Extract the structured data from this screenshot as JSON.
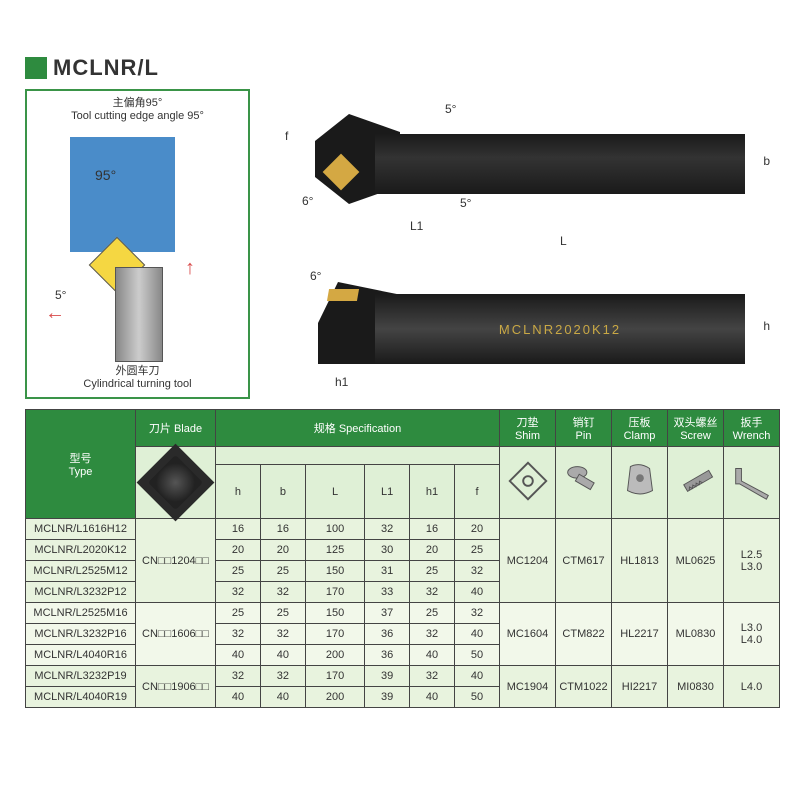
{
  "title": "MCLNR/L",
  "diagram": {
    "top_label_cn": "主偏角95°",
    "top_label_en": "Tool cutting edge angle 95°",
    "angle_main": "95°",
    "angle_minor": "5°",
    "bottom_label_cn": "外圆车刀",
    "bottom_label_en": "Cylindrical turning tool"
  },
  "dims": {
    "a5_top": "5°",
    "a6_left": "6°",
    "a5_right": "5°",
    "f": "f",
    "b": "b",
    "L": "L",
    "L1": "L1",
    "a6_side": "6°",
    "h1": "h1",
    "h": "h",
    "marking": "MCLNR2020K12"
  },
  "headers": {
    "type_cn": "型号",
    "type_en": "Type",
    "blade_cn": "刀片",
    "blade_en": "Blade",
    "spec_cn": "规格",
    "spec_en": "Specification",
    "shim_cn": "刀垫",
    "shim_en": "Shim",
    "pin_cn": "销钉",
    "pin_en": "Pin",
    "clamp_cn": "压板",
    "clamp_en": "Clamp",
    "screw_cn": "双头螺丝",
    "screw_en": "Screw",
    "wrench_cn": "扳手",
    "wrench_en": "Wrench",
    "h": "h",
    "b": "b",
    "L": "L",
    "L1": "L1",
    "h1": "h1",
    "f": "f"
  },
  "groups": [
    {
      "blade_code": "CN□□1204□□",
      "rows": [
        {
          "type": "MCLNR/L1616H12",
          "h": "16",
          "b": "16",
          "L": "100",
          "L1": "32",
          "h1": "16",
          "f": "20"
        },
        {
          "type": "MCLNR/L2020K12",
          "h": "20",
          "b": "20",
          "L": "125",
          "L1": "30",
          "h1": "20",
          "f": "25"
        },
        {
          "type": "MCLNR/L2525M12",
          "h": "25",
          "b": "25",
          "L": "150",
          "L1": "31",
          "h1": "25",
          "f": "32"
        },
        {
          "type": "MCLNR/L3232P12",
          "h": "32",
          "b": "32",
          "L": "170",
          "L1": "33",
          "h1": "32",
          "f": "40"
        }
      ],
      "shim": "MC1204",
      "pin": "CTM617",
      "clamp": "HL1813",
      "screw": "ML0625",
      "wrench": "L2.5\nL3.0"
    },
    {
      "blade_code": "CN□□1606□□",
      "rows": [
        {
          "type": "MCLNR/L2525M16",
          "h": "25",
          "b": "25",
          "L": "150",
          "L1": "37",
          "h1": "25",
          "f": "32"
        },
        {
          "type": "MCLNR/L3232P16",
          "h": "32",
          "b": "32",
          "L": "170",
          "L1": "36",
          "h1": "32",
          "f": "40"
        },
        {
          "type": "MCLNR/L4040R16",
          "h": "40",
          "b": "40",
          "L": "200",
          "L1": "36",
          "h1": "40",
          "f": "50"
        }
      ],
      "shim": "MC1604",
      "pin": "CTM822",
      "clamp": "HL2217",
      "screw": "ML0830",
      "wrench": "L3.0\nL4.0"
    },
    {
      "blade_code": "CN□□1906□□",
      "rows": [
        {
          "type": "MCLNR/L3232P19",
          "h": "32",
          "b": "32",
          "L": "170",
          "L1": "39",
          "h1": "32",
          "f": "40"
        },
        {
          "type": "MCLNR/L4040R19",
          "h": "40",
          "b": "40",
          "L": "200",
          "L1": "39",
          "h1": "40",
          "f": "50"
        }
      ],
      "shim": "MC1904",
      "pin": "CTM1022",
      "clamp": "HI2217",
      "screw": "MI0830",
      "wrench": "L4.0"
    }
  ]
}
